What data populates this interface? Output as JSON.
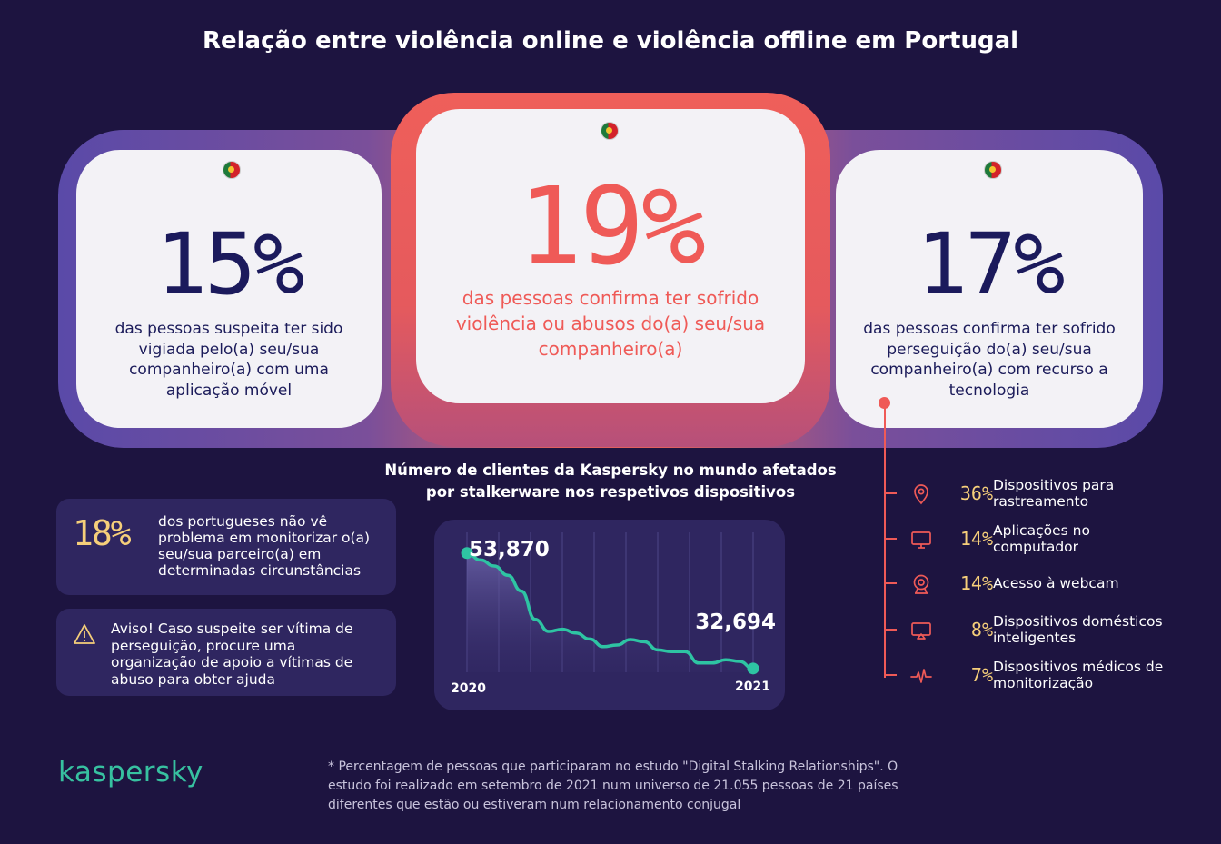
{
  "title": "Relação entre violência online e violência offline em Portugal",
  "cards": {
    "left": {
      "percent": "15%",
      "text": "das pessoas suspeita ter sido vigiada pelo(a) seu/sua companheiro(a) com uma aplicação móvel"
    },
    "center": {
      "percent": "19%",
      "text": "das pessoas confirma ter sofrido violência ou abusos do(a) seu/sua companheiro(a)"
    },
    "right": {
      "percent": "17%",
      "text": "das pessoas confirma ter sofrido perseguição do(a) seu/sua companheiro(a) com recurso a tecnologia"
    }
  },
  "info_box": {
    "percent": "18%",
    "text": "dos portugueses não vê problema em monitorizar o(a) seu/sua parceiro(a) em determinadas circunstâncias"
  },
  "warning": {
    "icon": "warning-icon",
    "text": "Aviso! Caso suspeite ser vítima de perseguição, procure uma organização de apoio a vítimas de abuso para obter ajuda"
  },
  "chart_data": {
    "type": "line",
    "title": "Número de clientes da Kaspersky no mundo afetados por stalkerware nos respetivos dispositivos",
    "x_labels": [
      "2020",
      "2021"
    ],
    "start_label": "53,870",
    "end_label": "32,694",
    "series": [
      {
        "values": [
          53870,
          52600,
          51500,
          49800,
          46900,
          41700,
          39500,
          39900,
          39200,
          38100,
          36700,
          37000,
          38000,
          37600,
          36100,
          35800,
          35800,
          33700,
          33700,
          34300,
          34000,
          32694
        ]
      }
    ],
    "ylim": [
      25000,
      60000
    ],
    "grid": "vertical",
    "line_color": "#2ec4a3"
  },
  "device_list": [
    {
      "icon": "location-pin-icon",
      "percent": "36%",
      "label": "Dispositivos para rastreamento"
    },
    {
      "icon": "computer-monitor-icon",
      "percent": "14%",
      "label": "Aplicações no computador"
    },
    {
      "icon": "webcam-icon",
      "percent": "14%",
      "label": "Acesso à webcam"
    },
    {
      "icon": "smart-home-device-icon",
      "percent": "8%",
      "label": "Dispositivos domésticos inteligentes"
    },
    {
      "icon": "heartbeat-icon",
      "percent": "7%",
      "label": "Dispositivos médicos de monitorização"
    }
  ],
  "logo": "kaspersky",
  "footnote": "* Percentagem de pessoas que participaram no estudo \"Digital Stalking Relationships\". O estudo foi realizado em setembro de 2021 num universo de 21.055 pessoas de 21 países diferentes que estão ou estiveram num relacionamento conjugal",
  "colors": {
    "background": "#1d1440",
    "accent_red": "#ef5a57",
    "accent_yellow": "#f6cf7a",
    "accent_teal": "#2ec4a3",
    "navy": "#1b1a5c"
  }
}
